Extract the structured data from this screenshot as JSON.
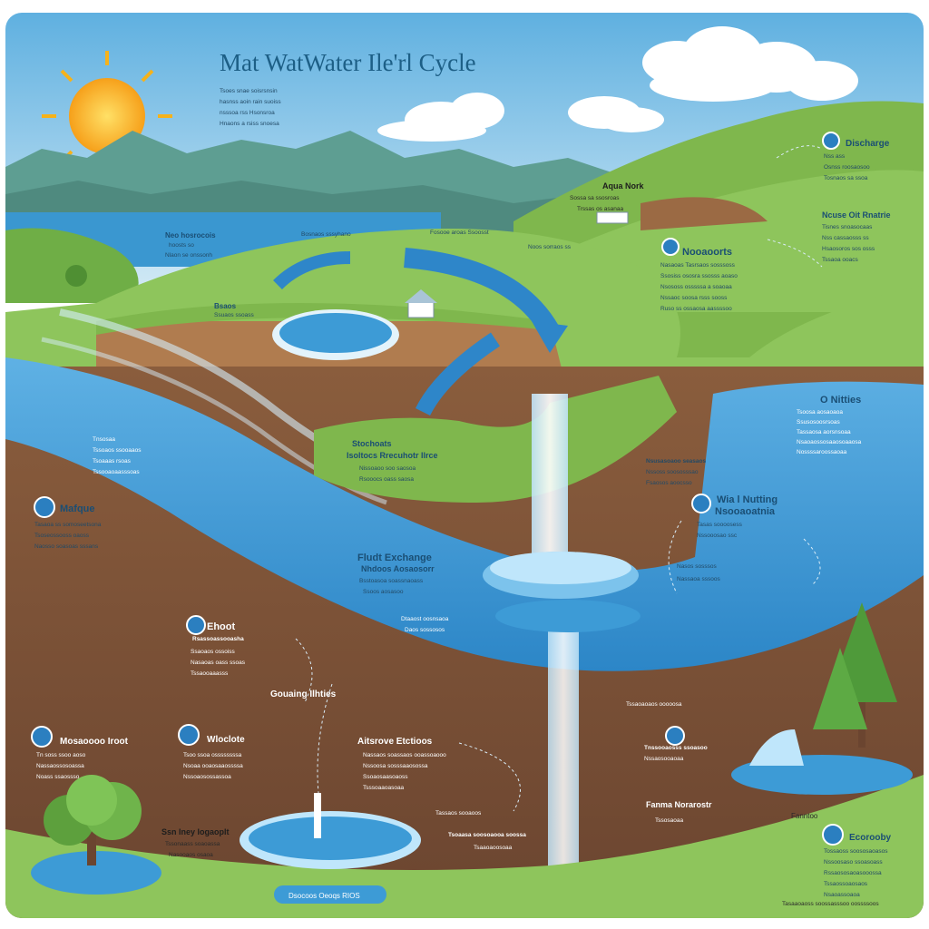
{
  "title": "Mat WatWater Ile'rl Cycle",
  "colors": {
    "sky": "#8fc9e8",
    "water": "#3d9bd6",
    "land": "#7fb74d",
    "soil": "#7a5236",
    "sun": "#f6b21a"
  },
  "icons": [
    "sun-icon",
    "water-drop-icon",
    "cloud-icon",
    "tree-icon",
    "house-icon",
    "arrow-icon"
  ],
  "labels": {
    "top_left_intro": {
      "text": [
        "Tsoes snae soisrsnsin",
        "hasnss aoin rain suoiss",
        "nsssoa rss Hsonsroa",
        "Hnaons a rsiss snoesa"
      ]
    },
    "hills_left": {
      "title": "Neo hosrocois",
      "text": [
        "hoosts so",
        "Nlaon se onssonh"
      ]
    },
    "hills_mid": {
      "text": [
        "Bosnaos sssyhano"
      ]
    },
    "center_top": {
      "text": [
        "Fosooe aroas Ssoosst"
      ]
    },
    "aquas_work": {
      "title": "Aqua Nork",
      "text": [
        "Sossa sa ssosroas",
        "Trssas os asanaa"
      ]
    },
    "river_mid": {
      "text": [
        "Noos sorraos ss"
      ]
    },
    "reservoir": {
      "title": "Bsaos",
      "text": [
        "Ssuaos ssoass"
      ]
    },
    "discharge": {
      "title": "Discharge",
      "text": [
        "Nss ass",
        "Osnss roosaosoo",
        "Tosnaos sa ssoa"
      ]
    },
    "nature_ret": {
      "title": "Ncuse Oit Rnatrie",
      "text": [
        "Tisnes snoasocaas",
        "Nss cassaosss ss",
        "Hsaosoros sos osss",
        "Tssaoa ooacs"
      ]
    },
    "nooaoorts": {
      "title": "Nooaoorts",
      "text": [
        "Nasaoas Tasrsaos sosssoss",
        "Ssosiss ososra ssosss aoaso",
        "Nsososs osssssa a soaoaa",
        "Nssaoc soosa rsss sooss",
        "Ruso ss ossaosa aassssoo"
      ]
    },
    "o_nitties": {
      "title": "O Nitties",
      "text": [
        "Tsoosa aosaoaoa",
        "Ssusosoosrsoas",
        "Tassaosa aorsnsoaa",
        "Nsaoaossosaaosoaaosa",
        "Nossssaroossaoaa"
      ]
    },
    "wia_nutting": {
      "title": "Wia l Nutting",
      "subtitle": "Nsooaoatnia",
      "text": [
        "Tasas soooosess",
        "Nssooosao ssc",
        "Nasos sosssos",
        "Nassaoa sssoos"
      ]
    },
    "noussaoaa": {
      "text": [
        "Nsusasoaoo seasaos",
        "Nssoss soososssao",
        "Fsaosos aoocsso"
      ]
    },
    "stochoats": {
      "title": "Stochoats",
      "subtitle": "Isoltocs Rrecuhotr Ilrce",
      "text": [
        "Nissoaoo soo saosoa",
        "Rsooocs oass saosa"
      ]
    },
    "mafque": {
      "title": "Mafque",
      "text": [
        "Tasaoa ss somoseetsona",
        "Tsoseossooss oaoss",
        "Naosso soasoas sssans"
      ]
    },
    "left_tiny": {
      "text": [
        "Tnsosaa",
        "Tssoaos ssooaaos",
        "Tsoaaas rsoas",
        "Tssooaoaasssoas"
      ]
    },
    "fludt_exchange": {
      "title": "Fludt Exchange",
      "subtitle": "Nhdoos Aosaosorr",
      "text": [
        "Bsstoasoa soassnaoass",
        "Ssoos aosasoo",
        "Dtaaost oosnsaoa",
        "Daos sossosos"
      ]
    },
    "ehoot": {
      "title": "Ehoot",
      "subtitle": "Rsassoassooasha",
      "text": [
        "Ssaoaos ossoiss",
        "Nasaoas oass ssoas",
        "Tssaooaaasss"
      ]
    },
    "gouaing": {
      "title": "Gouaing Ilhties"
    },
    "monarcorlt": {
      "title": "Mosaoooo Iroot",
      "text": [
        "Tn soss ssoo aoso",
        "Nassaossosoassa",
        "Noass ssaossso"
      ]
    },
    "wloclote": {
      "title": "Wloclote",
      "text": [
        "Tsoo ssoa ossssssssa",
        "Nsoaa ooaosaaossssa",
        "Nssoaosossassoa"
      ]
    },
    "aitstrove": {
      "title": "Aitsrove Etctioos",
      "text": [
        "Nassaos soassaos ooassoaooo",
        "Nssoosa sosssaaosossa",
        "Ssoaosaasoaoss",
        "Tsssoaaoasoaa"
      ]
    },
    "bottom_lake": {
      "title": "Ssn Iney Iogaoplt",
      "text": [
        "Tssonaass soaoassa",
        "Nasooaos osaoa"
      ]
    },
    "pipe_labels": {
      "text": [
        "Tassaos sooaoos",
        "Tsoaasa soosoaooa soossa",
        "Tsaaoaoosoaa"
      ]
    },
    "right_mid": {
      "text": [
        "Tssaoaoaos ooooosa"
      ]
    },
    "right_ground": {
      "text": [
        "Tnssooaosss ssoasoo",
        "Nssaosooaoaa"
      ]
    },
    "fanma": {
      "title": "Fanma Norarostr",
      "text": [
        "Tssosaoaa"
      ]
    },
    "fanntoo": {
      "text": [
        "Fanntoo"
      ]
    },
    "ecorooby": {
      "title": "Ecorooby",
      "text": [
        "Tossaoss soososaoasos",
        "Nssoosaso ssoasoass",
        "Rssaososaoasooossa",
        "Tssaossoaosaos",
        "Nsaoassoaoa"
      ]
    },
    "bottom_bar": {
      "text": [
        "Dsocoos Oeoqs RIOS"
      ]
    },
    "footer": {
      "text": [
        "Tasaaoaoss soossasssoo oossssoos"
      ]
    }
  }
}
